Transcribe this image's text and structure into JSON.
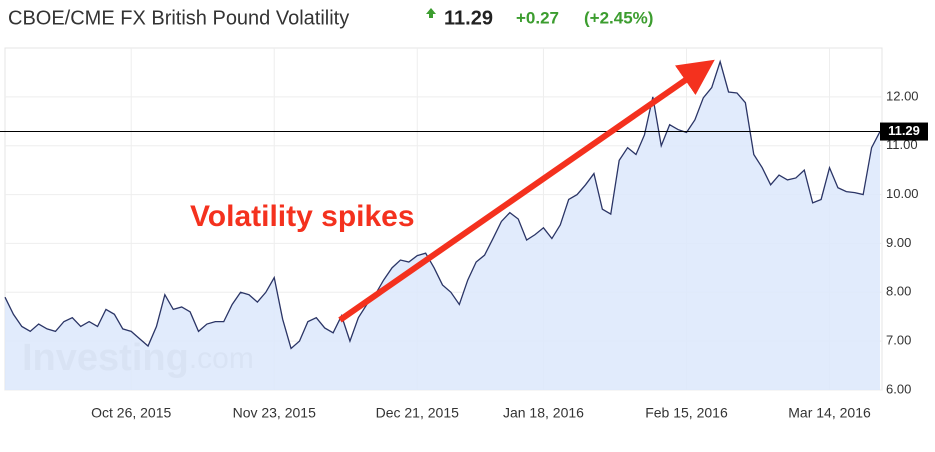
{
  "header": {
    "title": "CBOE/CME FX British Pound Volatility",
    "price": "11.29",
    "change": "+0.27",
    "change_pct": "(+2.45%)"
  },
  "chart_data": {
    "type": "area",
    "annotation": "Volatility spikes",
    "watermark": {
      "brand": "Investing",
      "suffix": ".com"
    },
    "categories": [
      null,
      null,
      null,
      null,
      null,
      null,
      null,
      null,
      null,
      null,
      null,
      null,
      null,
      null,
      null,
      "Oct 26, 2015",
      null,
      null,
      null,
      null,
      null,
      null,
      null,
      null,
      null,
      null,
      null,
      null,
      null,
      null,
      null,
      null,
      "Nov 23, 2015",
      null,
      null,
      null,
      null,
      null,
      null,
      null,
      null,
      null,
      null,
      null,
      null,
      null,
      null,
      null,
      null,
      "Dec 21, 2015",
      null,
      null,
      null,
      null,
      null,
      null,
      null,
      null,
      null,
      null,
      null,
      null,
      null,
      null,
      "Jan 18, 2016",
      null,
      null,
      null,
      null,
      null,
      null,
      null,
      null,
      null,
      null,
      null,
      null,
      null,
      null,
      null,
      null,
      "Feb 15, 2016",
      null,
      null,
      null,
      null,
      null,
      null,
      null,
      null,
      null,
      null,
      null,
      null,
      null,
      null,
      null,
      null,
      "Mar 14, 2016",
      null,
      null,
      null,
      null,
      null,
      null
    ],
    "series": [
      {
        "color": "#2b3566",
        "fill": "#dce8fb",
        "values": [
          7.9,
          7.55,
          7.3,
          7.2,
          7.35,
          7.25,
          7.2,
          7.4,
          7.48,
          7.3,
          7.4,
          7.3,
          7.65,
          7.55,
          7.25,
          7.2,
          7.05,
          6.9,
          7.3,
          7.95,
          7.65,
          7.7,
          7.6,
          7.2,
          7.35,
          7.4,
          7.4,
          7.75,
          8.0,
          7.95,
          7.8,
          8.0,
          8.3,
          7.45,
          6.85,
          7.0,
          7.4,
          7.48,
          7.27,
          7.17,
          7.52,
          7.0,
          7.48,
          7.75,
          7.95,
          8.25,
          8.5,
          8.66,
          8.62,
          8.75,
          8.8,
          8.5,
          8.15,
          8.0,
          7.75,
          8.25,
          8.62,
          8.76,
          9.1,
          9.45,
          9.63,
          9.5,
          9.07,
          9.18,
          9.32,
          9.1,
          9.38,
          9.9,
          10.0,
          10.2,
          10.43,
          9.7,
          9.6,
          10.7,
          10.96,
          10.82,
          11.22,
          12.0,
          11.0,
          11.43,
          11.33,
          11.27,
          11.53,
          11.98,
          12.19,
          12.72,
          12.1,
          12.08,
          11.88,
          10.82,
          10.55,
          10.2,
          10.4,
          10.3,
          10.34,
          10.5,
          9.83,
          9.9,
          10.55,
          10.14,
          10.06,
          10.04,
          10.0,
          10.96,
          11.29
        ]
      }
    ],
    "reference_line": 11.29,
    "ylim": [
      6,
      13
    ],
    "yticks": [
      {
        "value": 6,
        "label": "6.00"
      },
      {
        "value": 7,
        "label": "7.00"
      },
      {
        "value": 8,
        "label": "8.00"
      },
      {
        "value": 9,
        "label": "9.00"
      },
      {
        "value": 10,
        "label": "10.00"
      },
      {
        "value": 11,
        "label": "11.00"
      },
      {
        "value": 12,
        "label": "12.00"
      }
    ],
    "grid": true
  }
}
